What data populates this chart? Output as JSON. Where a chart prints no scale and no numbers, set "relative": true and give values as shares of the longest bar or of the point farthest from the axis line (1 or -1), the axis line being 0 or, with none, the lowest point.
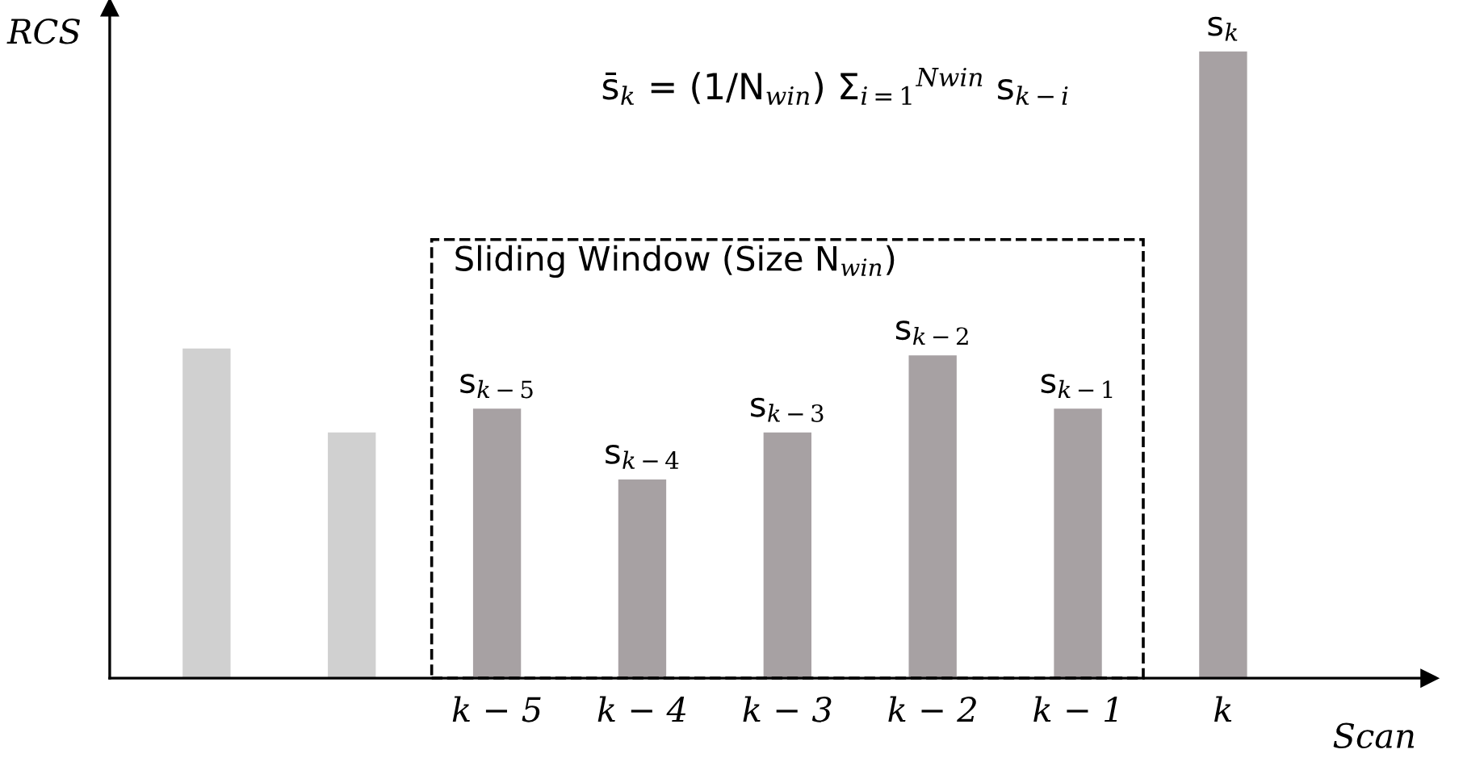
{
  "chart_data": {
    "type": "bar",
    "relative": true,
    "xlabel": "Scan",
    "ylabel": "RCS",
    "categories": [
      null,
      null,
      "k − 5",
      "k − 4",
      "k − 3",
      "k − 2",
      "k − 1",
      "k"
    ],
    "values": [
      0.526,
      0.392,
      0.43,
      0.317,
      0.392,
      0.515,
      0.43,
      1
    ],
    "colors": [
      "#d0d0d0",
      "#d0d0d0",
      "#a7a1a3",
      "#a7a1a3",
      "#a7a1a3",
      "#a7a1a3",
      "#a7a1a3",
      "#a7a1a3"
    ],
    "annotations": [
      "s̄$_{k}$ = (1/N$_{win}$) Σ$_{i=1}$$^{Nwin}$ s$_{k−i}$",
      "Sliding Window (Size N$_{win}$)",
      {
        "text": "s$_{k−5}$",
        "x": "k − 5",
        "y": 0.43
      },
      {
        "text": "s$_{k−4}$",
        "x": "k − 4",
        "y": 0.317
      },
      {
        "text": "s$_{k−3}$",
        "x": "k − 3",
        "y": 0.392
      },
      {
        "text": "s$_{k−2}$",
        "x": "k − 2",
        "y": 0.515
      },
      {
        "text": "s$_{k−1}$",
        "x": "k − 1",
        "y": 0.43
      },
      {
        "text": "s$_{k}$",
        "x": "k",
        "y": 1
      }
    ],
    "grid": false
  }
}
